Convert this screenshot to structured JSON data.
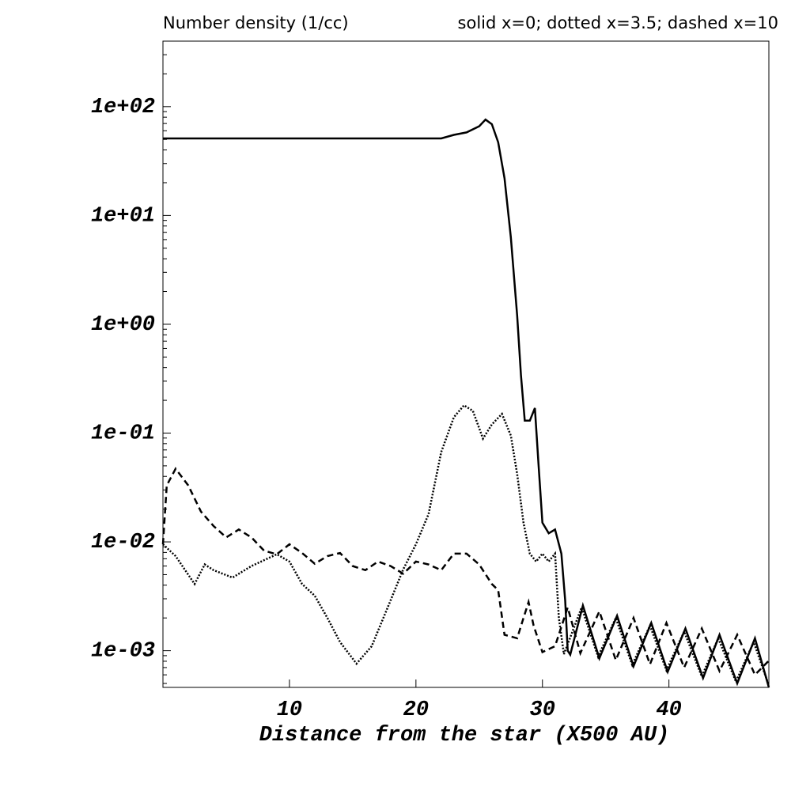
{
  "chart_data": {
    "type": "line",
    "title": "Number density (1/cc)",
    "subtitle": "solid x=0; dotted x=3.5; dashed x=10",
    "xlabel": "Distance from the star (X500 AU)",
    "xlim": [
      0,
      47.9
    ],
    "ylim": [
      0.00046,
      400
    ],
    "log_y": true,
    "xticks": [
      10,
      20,
      30,
      40
    ],
    "yticks": [
      {
        "value": 100,
        "label": "1e+02"
      },
      {
        "value": 10,
        "label": "1e+01"
      },
      {
        "value": 1,
        "label": "1e+00"
      },
      {
        "value": 0.1,
        "label": "1e-01"
      },
      {
        "value": 0.01,
        "label": "1e-02"
      },
      {
        "value": 0.001,
        "label": "1e-03"
      }
    ],
    "series": [
      {
        "color": "#000000",
        "dash": "solid",
        "x": [
          0,
          22,
          23,
          24,
          25,
          25.5,
          26,
          26.5,
          27,
          27.5,
          28,
          28.3,
          28.6,
          29,
          29.4,
          29.7,
          30,
          30.5,
          31,
          31.5,
          31.8,
          32,
          32.2,
          33.2,
          34.5,
          35.9,
          37.2,
          38.6,
          39.9,
          41.3,
          42.7,
          44,
          45.4,
          46.8,
          47.9
        ],
        "values": [
          51,
          51,
          55,
          58,
          66,
          76,
          69,
          47,
          22,
          6.3,
          1.2,
          0.34,
          0.13,
          0.13,
          0.17,
          0.049,
          0.015,
          0.012,
          0.013,
          0.0078,
          0.0029,
          0.001,
          0.00092,
          0.0026,
          0.00085,
          0.0021,
          0.00072,
          0.0018,
          0.00064,
          0.0016,
          0.00056,
          0.0014,
          0.0005,
          0.0013,
          0.00046
        ]
      },
      {
        "color": "#000000",
        "dash": "dotted",
        "x": [
          0,
          1,
          2.5,
          3.3,
          4,
          5.5,
          7,
          9,
          10,
          11,
          12,
          13,
          14,
          15.3,
          16.5,
          18,
          19,
          20,
          21,
          22,
          23,
          23.8,
          24.5,
          25.3,
          26,
          26.8,
          27.5,
          28,
          28.5,
          29,
          29.5,
          30,
          30.5,
          31,
          31.3,
          31.7,
          33.1,
          34.4,
          35.8,
          37.1,
          38.5,
          39.8,
          41.2,
          42.6,
          43.9,
          45.3,
          46.7,
          47.9
        ],
        "values": [
          0.0095,
          0.0074,
          0.0041,
          0.0062,
          0.0055,
          0.0047,
          0.006,
          0.0077,
          0.0066,
          0.0041,
          0.0032,
          0.002,
          0.0012,
          0.00076,
          0.0011,
          0.0029,
          0.0056,
          0.0095,
          0.018,
          0.067,
          0.14,
          0.18,
          0.16,
          0.089,
          0.12,
          0.15,
          0.095,
          0.042,
          0.015,
          0.0078,
          0.0066,
          0.0078,
          0.0066,
          0.0078,
          0.002,
          0.00093,
          0.0025,
          0.00088,
          0.002,
          0.00074,
          0.0017,
          0.00066,
          0.0015,
          0.00058,
          0.0013,
          0.00052,
          0.0012,
          0.00048
        ]
      },
      {
        "color": "#000000",
        "dash": "dashed",
        "x": [
          0,
          0.3,
          1,
          2,
          3,
          4,
          5,
          6,
          7,
          8,
          9,
          10,
          11,
          12,
          13,
          14,
          15,
          16,
          17,
          18,
          19,
          20,
          21,
          22,
          23,
          24,
          25,
          26,
          26.5,
          27,
          28,
          28.5,
          28.9,
          29.3,
          30,
          31,
          32,
          33,
          34.5,
          35.8,
          37.2,
          38.5,
          39.8,
          41.2,
          42.6,
          44,
          45.4,
          46.8,
          47.9
        ],
        "values": [
          0.0095,
          0.033,
          0.047,
          0.033,
          0.019,
          0.014,
          0.011,
          0.013,
          0.011,
          0.0083,
          0.0077,
          0.0095,
          0.0079,
          0.0063,
          0.0074,
          0.0079,
          0.006,
          0.0055,
          0.0066,
          0.006,
          0.0051,
          0.0066,
          0.0062,
          0.0055,
          0.0078,
          0.0078,
          0.0062,
          0.0041,
          0.0036,
          0.0014,
          0.0013,
          0.002,
          0.0028,
          0.0017,
          0.00097,
          0.0011,
          0.0025,
          0.00095,
          0.0023,
          0.00082,
          0.002,
          0.00075,
          0.0018,
          0.0007,
          0.0016,
          0.00065,
          0.0014,
          0.0006,
          0.00081
        ]
      }
    ]
  }
}
